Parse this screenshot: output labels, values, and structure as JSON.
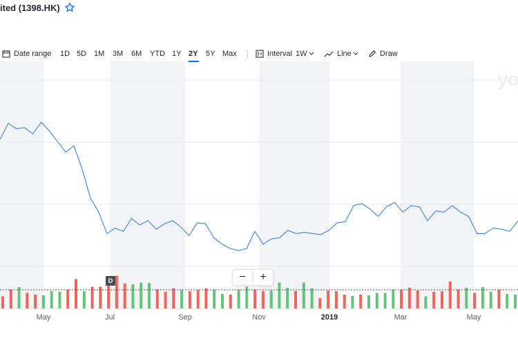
{
  "header": {
    "title": "ited (1398.HK)",
    "star_icon": "star-outline-icon"
  },
  "toolbar": {
    "date_range_label": "Date range",
    "date_range_icon": "calendar-icon",
    "ranges": [
      "1D",
      "5D",
      "1M",
      "3M",
      "6M",
      "YTD",
      "1Y",
      "2Y",
      "5Y",
      "Max"
    ],
    "active_range": "2Y",
    "interval_label": "Interval",
    "interval_icon": "candlestick-icon",
    "interval_value": "1W",
    "chart_type_icon": "line-chart-icon",
    "chart_type_label": "Line",
    "draw_icon": "pencil-icon",
    "draw_label": "Draw"
  },
  "zoom": {
    "minus_label": "−",
    "plus_label": "+"
  },
  "badge": {
    "label": "D"
  },
  "watermark": "yo",
  "colors": {
    "line": "#3b82e6",
    "volume_up": "#62c579",
    "volume_down": "#f0645a",
    "shade": "#f3f4f5",
    "accent": "#0f69ff"
  },
  "chart_data": {
    "type": "line",
    "x_ticks": [
      "May",
      "Jul",
      "Sep",
      "Nov",
      "2019",
      "Mar",
      "May"
    ],
    "price": [
      6.4,
      6.55,
      6.5,
      6.51,
      6.45,
      6.56,
      6.48,
      6.38,
      6.28,
      6.34,
      6.12,
      5.85,
      5.72,
      5.52,
      5.57,
      5.54,
      5.66,
      5.6,
      5.64,
      5.56,
      5.61,
      5.64,
      5.58,
      5.5,
      5.62,
      5.61,
      5.48,
      5.42,
      5.38,
      5.36,
      5.38,
      5.54,
      5.42,
      5.47,
      5.48,
      5.55,
      5.52,
      5.53,
      5.52,
      5.51,
      5.55,
      5.62,
      5.63,
      5.78,
      5.8,
      5.75,
      5.68,
      5.77,
      5.81,
      5.72,
      5.78,
      5.77,
      5.64,
      5.73,
      5.72,
      5.78,
      5.72,
      5.68,
      5.52,
      5.52,
      5.57,
      5.56,
      5.54,
      5.64
    ],
    "volume_colors": [
      "down",
      "down",
      "green",
      "down",
      "down",
      "green",
      "green",
      "green",
      "down",
      "down",
      "green",
      "down",
      "down",
      "down",
      "down",
      "down",
      "green",
      "green",
      "green",
      "down",
      "down",
      "down",
      "green",
      "down",
      "down",
      "down",
      "green",
      "green",
      "down",
      "green",
      "green",
      "down",
      "down",
      "green",
      "green",
      "green",
      "down",
      "green",
      "green",
      "down",
      "down",
      "down",
      "down",
      "green",
      "down",
      "green",
      "green",
      "green",
      "green",
      "down",
      "down",
      "down",
      "green",
      "down",
      "down",
      "down",
      "down",
      "green",
      "down",
      "green",
      "green",
      "down",
      "green",
      "green"
    ],
    "volume": [
      0.35,
      0.55,
      0.62,
      0.45,
      0.4,
      0.38,
      0.5,
      0.48,
      0.55,
      0.85,
      0.5,
      0.63,
      0.63,
      0.88,
      0.95,
      0.72,
      0.7,
      0.75,
      0.74,
      0.55,
      0.48,
      0.58,
      0.53,
      0.5,
      0.53,
      0.58,
      0.55,
      0.42,
      0.4,
      0.55,
      0.63,
      0.55,
      0.5,
      0.52,
      0.75,
      0.6,
      0.5,
      0.75,
      0.58,
      0.3,
      0.52,
      0.5,
      0.4,
      0.36,
      0.4,
      0.38,
      0.45,
      0.45,
      0.55,
      0.55,
      0.6,
      0.52,
      0.35,
      0.48,
      0.5,
      0.78,
      0.55,
      0.6,
      0.45,
      0.62,
      0.48,
      0.55,
      0.42,
      0.4
    ],
    "y_range": [
      5.0,
      7.0
    ],
    "grid": true,
    "shaded_months": true
  }
}
